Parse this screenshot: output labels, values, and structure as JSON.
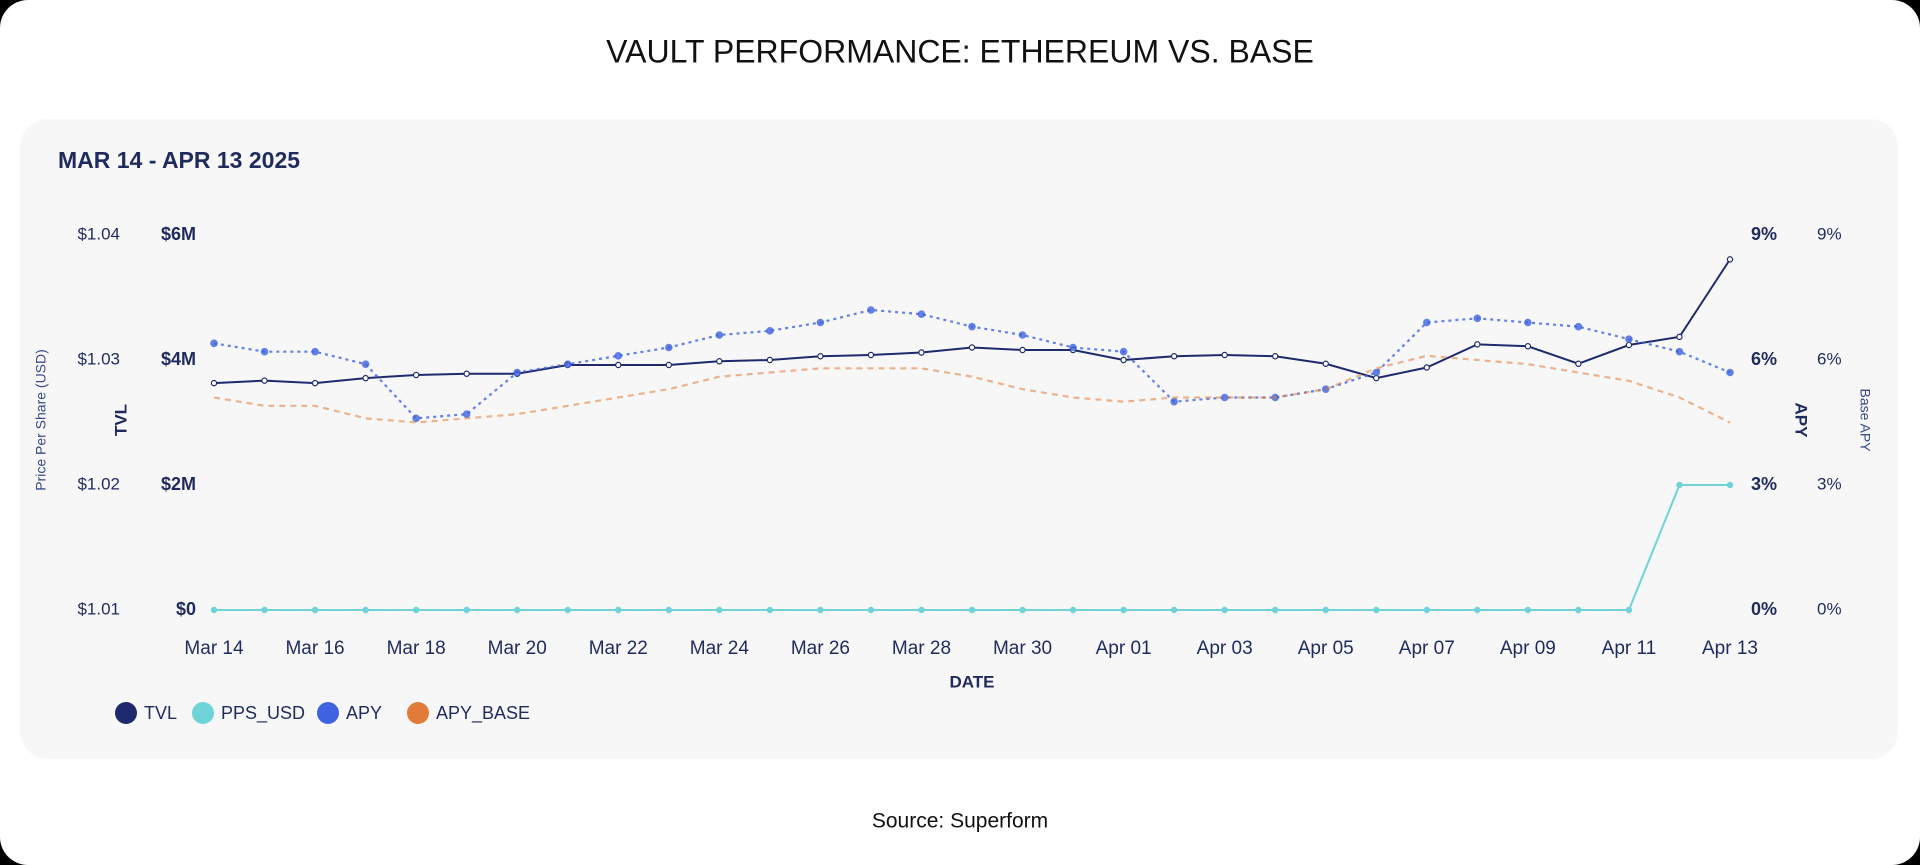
{
  "chart_data": {
    "type": "line",
    "title": "VAULT PERFORMANCE: ETHEREUM VS. BASE",
    "subtitle": "MAR 14 - APR 13 2025",
    "source": "Source: Superform",
    "xlabel": "DATE",
    "categories": [
      "Mar 14",
      null,
      "Mar 16",
      null,
      "Mar 18",
      null,
      "Mar 20",
      null,
      "Mar 22",
      null,
      "Mar 24",
      null,
      "Mar 26",
      null,
      "Mar 28",
      null,
      "Mar 30",
      null,
      "Apr 01",
      null,
      "Apr 03",
      null,
      "Apr 05",
      null,
      "Apr 07",
      null,
      "Apr 09",
      null,
      "Apr 11",
      null,
      "Apr 13"
    ],
    "ylabel": "TVL",
    "ylim": [
      0,
      6000000
    ],
    "yticks": [
      {
        "value": 0,
        "label": "$0"
      },
      {
        "value": 2000000,
        "label": "$2M"
      },
      {
        "value": 4000000,
        "label": "$4M"
      },
      {
        "value": 6000000,
        "label": "$6M"
      }
    ],
    "y3label": "Price Per Share (USD)",
    "y3lim": [
      1.01,
      1.04
    ],
    "y3ticks": [
      {
        "value": 1.01,
        "label": "$1.01"
      },
      {
        "value": 1.02,
        "label": "$1.02"
      },
      {
        "value": 1.03,
        "label": "$1.03"
      },
      {
        "value": 1.04,
        "label": "$1.04"
      }
    ],
    "y2label": "APY",
    "y2lim": [
      0,
      9
    ],
    "y2ticks": [
      {
        "value": 0,
        "label": "0%"
      },
      {
        "value": 3,
        "label": "3%"
      },
      {
        "value": 6,
        "label": "6%"
      },
      {
        "value": 9,
        "label": "9%"
      }
    ],
    "y4label": "Base APY",
    "y4lim": [
      0,
      9
    ],
    "y4ticks": [
      {
        "value": 0,
        "label": "0%"
      },
      {
        "value": 3,
        "label": "3%"
      },
      {
        "value": 6,
        "label": "6%"
      },
      {
        "value": 9,
        "label": "9%"
      }
    ],
    "grid": false,
    "series": [
      {
        "name": "TVL",
        "color": "#1f2a6e",
        "axis": "y",
        "style": "solid",
        "values": [
          3630000,
          3670000,
          3630000,
          3710000,
          3760000,
          3780000,
          3780000,
          3920000,
          3920000,
          3920000,
          3980000,
          4000000,
          4060000,
          4080000,
          4120000,
          4200000,
          4160000,
          4160000,
          4000000,
          4060000,
          4080000,
          4060000,
          3940000,
          3710000,
          3880000,
          4250000,
          4220000,
          3940000,
          4240000,
          4370000,
          5610000
        ]
      },
      {
        "name": "PPS_USD",
        "color": "#6fd3d8",
        "axis": "y3",
        "style": "solid",
        "values": [
          1.01,
          1.01,
          1.01,
          1.01,
          1.01,
          1.01,
          1.01,
          1.01,
          1.01,
          1.01,
          1.01,
          1.01,
          1.01,
          1.01,
          1.01,
          1.01,
          1.01,
          1.01,
          1.01,
          1.01,
          1.01,
          1.01,
          1.01,
          1.01,
          1.01,
          1.01,
          1.01,
          1.01,
          1.01,
          1.02,
          1.02
        ]
      },
      {
        "name": "APY",
        "color": "#3f63e0",
        "axis": "y2",
        "style": "dotted",
        "values": [
          6.4,
          6.2,
          6.2,
          5.9,
          4.6,
          4.7,
          5.7,
          5.9,
          6.1,
          6.3,
          6.6,
          6.7,
          6.9,
          7.2,
          7.1,
          6.8,
          6.6,
          6.3,
          6.2,
          5.0,
          5.1,
          5.1,
          5.3,
          5.7,
          6.9,
          7.0,
          6.9,
          6.8,
          6.5,
          6.2,
          5.7
        ]
      },
      {
        "name": "APY_BASE",
        "color": "#e07b39",
        "axis": "y4",
        "style": "dashed",
        "values": [
          5.1,
          4.9,
          4.9,
          4.6,
          4.5,
          4.6,
          4.7,
          4.9,
          5.1,
          5.3,
          5.6,
          5.7,
          5.8,
          5.8,
          5.8,
          5.6,
          5.3,
          5.1,
          5.0,
          5.1,
          5.1,
          5.1,
          5.3,
          5.8,
          6.1,
          6.0,
          5.9,
          5.7,
          5.5,
          5.1,
          4.5
        ]
      }
    ]
  }
}
